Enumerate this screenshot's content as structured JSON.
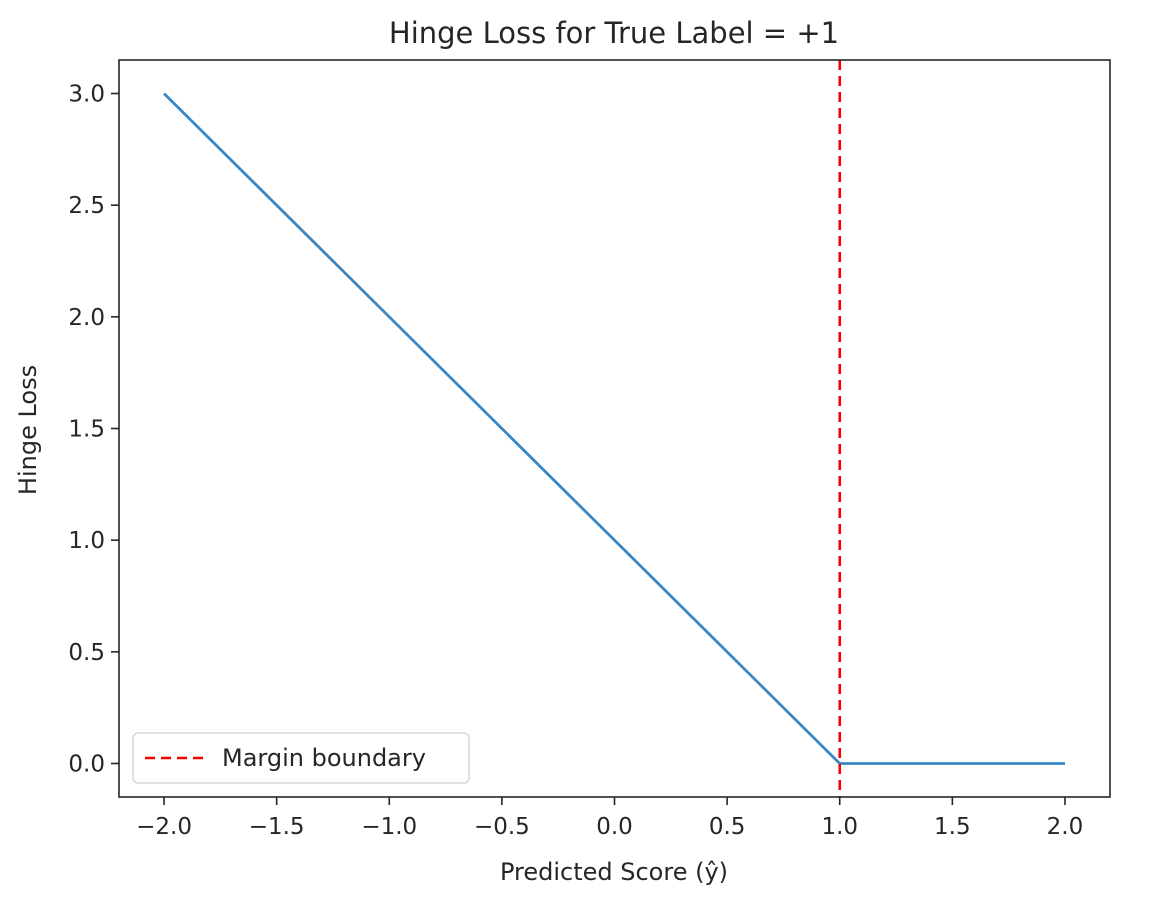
{
  "chart_data": {
    "type": "line",
    "title": "Hinge Loss for True Label = +1",
    "xlabel": "Predicted Score (ŷ)",
    "ylabel": "Hinge Loss",
    "xlim": [
      -2.2,
      2.2
    ],
    "ylim": [
      -0.15,
      3.15
    ],
    "x_ticks": [
      -2.0,
      -1.5,
      -1.0,
      -0.5,
      0.0,
      0.5,
      1.0,
      1.5,
      2.0
    ],
    "x_tick_labels": [
      "−2.0",
      "−1.5",
      "−1.0",
      "−0.5",
      "0.0",
      "0.5",
      "1.0",
      "1.5",
      "2.0"
    ],
    "y_ticks": [
      0.0,
      0.5,
      1.0,
      1.5,
      2.0,
      2.5,
      3.0
    ],
    "y_tick_labels": [
      "0.0",
      "0.5",
      "1.0",
      "1.5",
      "2.0",
      "2.5",
      "3.0"
    ],
    "grid": false,
    "legend_position": "lower-left",
    "series": [
      {
        "style": "solid",
        "color": "#3a87c4",
        "x": [
          -2.0,
          1.0,
          2.0
        ],
        "y": [
          3.0,
          0.0,
          0.0
        ]
      }
    ],
    "reference_lines": [
      {
        "name": "Margin boundary",
        "orientation": "vertical",
        "x": 1.0,
        "style": "dashed",
        "color": "#ff0000"
      }
    ]
  }
}
